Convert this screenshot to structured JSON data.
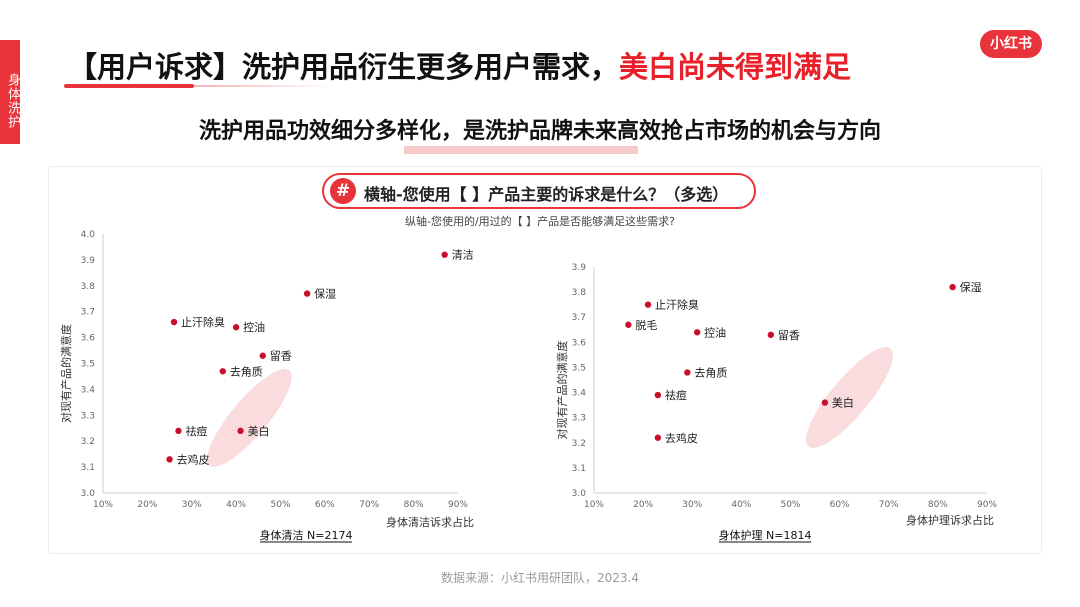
{
  "side_tab": "身体洗护",
  "header": {
    "title_main": "【用户诉求】洗护用品衍生更多用户需求，",
    "title_highlight": "美白尚未得到满足",
    "subtitle": "洗护用品功效细分多样化，是洗护品牌未来高效抢占市场的机会与方向",
    "logo": "小红书"
  },
  "panel": {
    "hash_icon": "#",
    "x_question": "横轴-您使用【 】产品主要的诉求是什么？（多选）",
    "y_question": "纵轴-您使用的/用过的【 】产品是否能够满足这些需求?"
  },
  "source": "数据来源：小红书用研团队，2023.4",
  "colors": {
    "accent": "#e8333a",
    "point": "#c8102e",
    "ellipse": "#f9d3d6"
  },
  "chart_data": [
    {
      "type": "scatter",
      "title": "身体清洁 N=2174",
      "xlabel": "身体清洁诉求占比",
      "ylabel": "对现有产品的满意度",
      "xlim": [
        0.1,
        0.9
      ],
      "ylim": [
        3.0,
        4.0
      ],
      "xticks": [
        "10%",
        "20%",
        "30%",
        "40%",
        "50%",
        "60%",
        "70%",
        "80%",
        "90%"
      ],
      "yticks": [
        "3.0",
        "3.1",
        "3.2",
        "3.3",
        "3.4",
        "3.5",
        "3.6",
        "3.7",
        "3.8",
        "3.9",
        "4.0"
      ],
      "highlight": {
        "cx": 0.43,
        "cy": 3.29,
        "rx": 0.14,
        "ry": 0.14,
        "angle": -50
      },
      "points": [
        {
          "label": "清洁",
          "x": 0.87,
          "y": 3.92
        },
        {
          "label": "保湿",
          "x": 0.56,
          "y": 3.77
        },
        {
          "label": "止汗除臭",
          "x": 0.26,
          "y": 3.66
        },
        {
          "label": "控油",
          "x": 0.4,
          "y": 3.64
        },
        {
          "label": "留香",
          "x": 0.46,
          "y": 3.53
        },
        {
          "label": "去角质",
          "x": 0.37,
          "y": 3.47
        },
        {
          "label": "祛痘",
          "x": 0.27,
          "y": 3.24
        },
        {
          "label": "美白",
          "x": 0.41,
          "y": 3.24
        },
        {
          "label": "去鸡皮",
          "x": 0.25,
          "y": 3.13
        }
      ]
    },
    {
      "type": "scatter",
      "title": "身体护理 N=1814",
      "xlabel": "身体护理诉求占比",
      "ylabel": "对现有产品的满意度",
      "xlim": [
        0.1,
        0.9
      ],
      "ylim": [
        3.0,
        3.9
      ],
      "xticks": [
        "10%",
        "20%",
        "30%",
        "40%",
        "50%",
        "60%",
        "70%",
        "80%",
        "90%"
      ],
      "yticks": [
        "3.0",
        "3.1",
        "3.2",
        "3.3",
        "3.4",
        "3.5",
        "3.6",
        "3.7",
        "3.8",
        "3.9"
      ],
      "highlight": {
        "cx": 0.62,
        "cy": 3.38,
        "rx": 0.13,
        "ry": 0.15,
        "angle": -50
      },
      "points": [
        {
          "label": "保湿",
          "x": 0.83,
          "y": 3.82
        },
        {
          "label": "止汗除臭",
          "x": 0.21,
          "y": 3.75
        },
        {
          "label": "脱毛",
          "x": 0.17,
          "y": 3.67
        },
        {
          "label": "控油",
          "x": 0.31,
          "y": 3.64
        },
        {
          "label": "留香",
          "x": 0.46,
          "y": 3.63
        },
        {
          "label": "去角质",
          "x": 0.29,
          "y": 3.48
        },
        {
          "label": "祛痘",
          "x": 0.23,
          "y": 3.39
        },
        {
          "label": "美白",
          "x": 0.57,
          "y": 3.36
        },
        {
          "label": "去鸡皮",
          "x": 0.23,
          "y": 3.22
        }
      ]
    }
  ]
}
